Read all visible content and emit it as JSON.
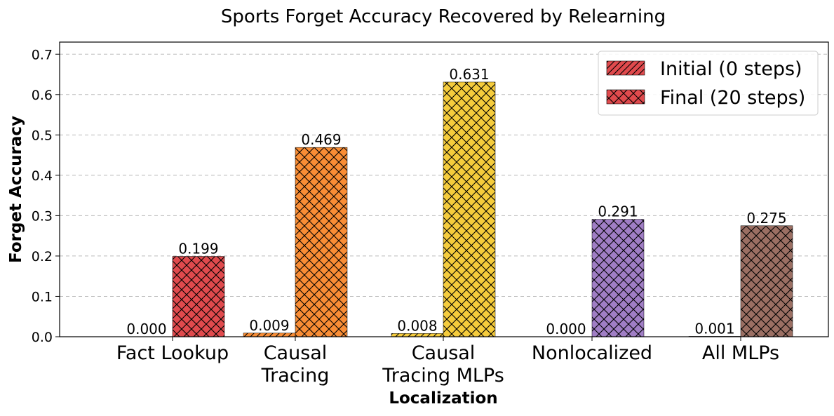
{
  "chart_data": {
    "type": "bar",
    "title": "Sports Forget Accuracy Recovered by Relearning",
    "xlabel": "Localization",
    "ylabel": "Forget Accuracy",
    "ylim": [
      0,
      0.73
    ],
    "yticks": [
      "0.0",
      "0.1",
      "0.2",
      "0.3",
      "0.4",
      "0.5",
      "0.6",
      "0.7"
    ],
    "grid": "horizontal dashed",
    "legend_position": "top-right",
    "categories": [
      [
        "Fact Lookup"
      ],
      [
        "Causal",
        "Tracing"
      ],
      [
        "Causal",
        "Tracing MLPs"
      ],
      [
        "Nonlocalized"
      ],
      [
        "All MLPs"
      ]
    ],
    "category_colors": [
      "#e04a4d",
      "#f98d35",
      "#f5cc3c",
      "#a07ec5",
      "#9b6f63"
    ],
    "series": [
      {
        "name": "Initial (0 steps)",
        "hatch": "diagonal",
        "values": [
          0.0,
          0.009,
          0.008,
          0.0,
          0.001
        ],
        "labels": [
          "0.000",
          "0.009",
          "0.008",
          "0.000",
          "0.001"
        ]
      },
      {
        "name": "Final (20 steps)",
        "hatch": "crosshatch",
        "values": [
          0.199,
          0.469,
          0.631,
          0.291,
          0.275
        ],
        "labels": [
          "0.199",
          "0.469",
          "0.631",
          "0.291",
          "0.275"
        ]
      }
    ],
    "legend_swatch_color": "#e04a4d"
  }
}
